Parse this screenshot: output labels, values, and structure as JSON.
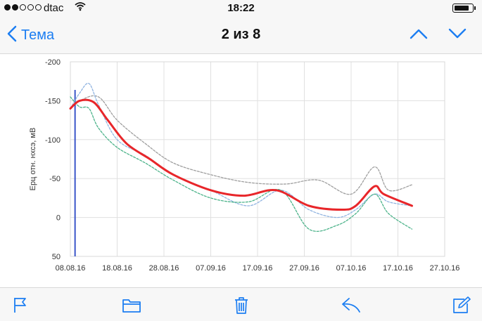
{
  "status_bar": {
    "carrier": "dtac",
    "time": "18:22",
    "signal_bars_filled": 2,
    "signal_bars_total": 5
  },
  "nav": {
    "back_label": "Тема",
    "title": "2 из 8"
  },
  "colors": {
    "accent": "#1c7ef2",
    "e_avg": "#e8262a",
    "gray_series": "#9e9e9e",
    "blue_series": "#8fb3e0",
    "green_series": "#4cb38a",
    "marker_line": "#3a55c8"
  },
  "toolbar": {
    "icons": [
      "flag-icon",
      "folder-icon",
      "trash-icon",
      "reply-icon",
      "compose-icon"
    ]
  },
  "chart_data": {
    "type": "line",
    "ylabel": "Ерц отн. нхсэ, мВ",
    "ylim": [
      50,
      -200
    ],
    "y_inverted": true,
    "y_ticks": [
      "-200",
      "-150",
      "-100",
      "-50",
      "0",
      "50"
    ],
    "x_ticks": [
      "08.08.16",
      "18.08.16",
      "28.08.16",
      "07.09.16",
      "17.09.16",
      "27.09.16",
      "07.10.16",
      "17.10.16",
      "27.10.16"
    ],
    "xlim": [
      "2016-08-08",
      "2016-10-27"
    ],
    "grid": true,
    "vertical_marker_date": "2016-08-09",
    "series": [
      {
        "key": "gray",
        "style": "dashed",
        "x": [
          "2016-08-08",
          "2016-08-10",
          "2016-08-14",
          "2016-08-18",
          "2016-08-24",
          "2016-08-30",
          "2016-09-07",
          "2016-09-15",
          "2016-09-23",
          "2016-09-30",
          "2016-10-07",
          "2016-10-12",
          "2016-10-15",
          "2016-10-20"
        ],
        "y": [
          -140,
          -150,
          -155,
          -125,
          -95,
          -70,
          -55,
          -45,
          -43,
          -48,
          -30,
          -65,
          -35,
          -42
        ]
      },
      {
        "key": "blue",
        "style": "dashed",
        "x": [
          "2016-08-08",
          "2016-08-10",
          "2016-08-12",
          "2016-08-14",
          "2016-08-18",
          "2016-08-24",
          "2016-08-30",
          "2016-09-07",
          "2016-09-15",
          "2016-09-22",
          "2016-09-28",
          "2016-10-04",
          "2016-10-08",
          "2016-10-12",
          "2016-10-15",
          "2016-10-20"
        ],
        "y": [
          -140,
          -160,
          -172,
          -145,
          -100,
          -80,
          -55,
          -35,
          -15,
          -35,
          -10,
          0,
          -10,
          -30,
          -20,
          -15
        ]
      },
      {
        "key": "green",
        "style": "dashed",
        "x": [
          "2016-08-08",
          "2016-08-10",
          "2016-08-12",
          "2016-08-14",
          "2016-08-18",
          "2016-08-24",
          "2016-08-30",
          "2016-09-07",
          "2016-09-15",
          "2016-09-22",
          "2016-09-28",
          "2016-10-04",
          "2016-10-08",
          "2016-10-12",
          "2016-10-15",
          "2016-10-20"
        ],
        "y": [
          -155,
          -142,
          -140,
          -115,
          -90,
          -70,
          -48,
          -25,
          -20,
          -35,
          15,
          10,
          -5,
          -30,
          -5,
          15
        ]
      },
      {
        "key": "avg",
        "style": "solid",
        "x": [
          "2016-08-08",
          "2016-08-10",
          "2016-08-13",
          "2016-08-16",
          "2016-08-20",
          "2016-08-25",
          "2016-08-30",
          "2016-09-07",
          "2016-09-14",
          "2016-09-21",
          "2016-09-28",
          "2016-10-05",
          "2016-10-08",
          "2016-10-12",
          "2016-10-14",
          "2016-10-20"
        ],
        "y": [
          -140,
          -150,
          -148,
          -125,
          -95,
          -75,
          -55,
          -35,
          -28,
          -35,
          -15,
          -10,
          -15,
          -40,
          -30,
          -15
        ]
      }
    ]
  }
}
